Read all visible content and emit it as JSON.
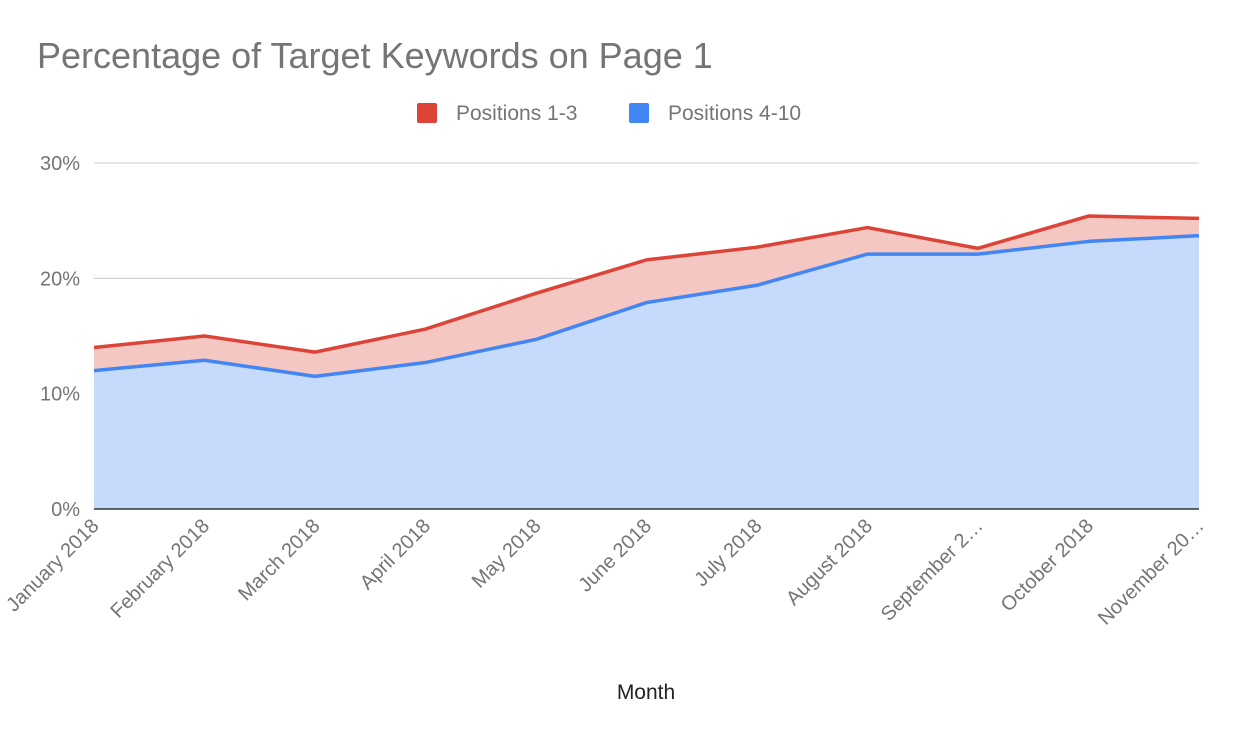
{
  "chart_data": {
    "type": "area",
    "stacked": true,
    "title": "Percentage of Target Keywords on Page 1",
    "xlabel": "Month",
    "ylabel": "",
    "ylim": [
      0,
      30
    ],
    "yticks": [
      0,
      10,
      20,
      30
    ],
    "ytick_labels": [
      "0%",
      "10%",
      "20%",
      "30%"
    ],
    "grid": true,
    "legend_position": "top",
    "categories": [
      "January 2018",
      "February 2018",
      "March 2018",
      "April 2018",
      "May 2018",
      "June 2018",
      "July 2018",
      "August 2018",
      "September 2…",
      "October 2018",
      "November 20…"
    ],
    "series": [
      {
        "name": "Positions 4-10",
        "color": "#4285f4",
        "fill": "#c6dafb",
        "values": [
          12.0,
          12.9,
          11.5,
          12.7,
          14.7,
          17.9,
          19.4,
          22.1,
          22.1,
          23.2,
          23.7
        ]
      },
      {
        "name": "Positions 1-3",
        "color": "#db4437",
        "fill": "#f4c7c3",
        "values": [
          2.0,
          2.1,
          2.1,
          2.9,
          4.0,
          3.7,
          3.3,
          2.3,
          0.5,
          2.2,
          1.5
        ]
      }
    ],
    "legend": [
      "Positions 1-3",
      "Positions 4-10"
    ]
  }
}
